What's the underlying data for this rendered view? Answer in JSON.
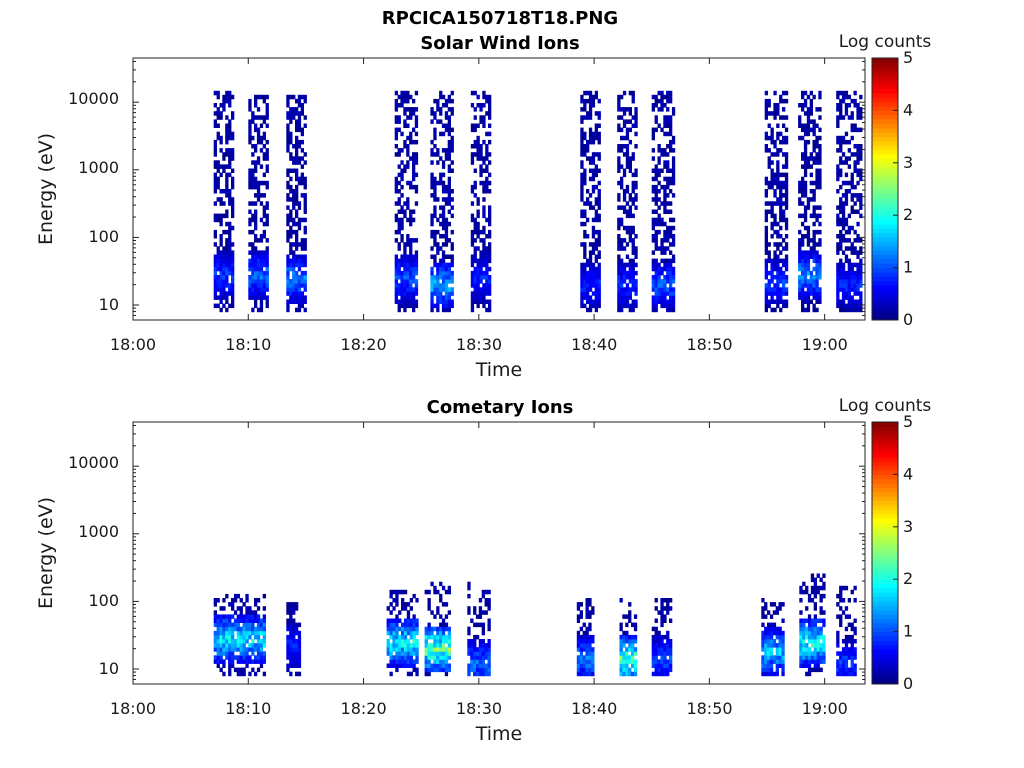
{
  "figure_title": "RPCICA150718T18.PNG",
  "colorbar": {
    "label": "Log counts",
    "ticks": [
      "0",
      "1",
      "2",
      "3",
      "4",
      "5"
    ],
    "range": [
      0,
      5
    ],
    "colormap": "jet"
  },
  "chart_data": [
    {
      "type": "heatmap",
      "title": "Solar Wind Ions",
      "xlabel": "Time",
      "ylabel": "Energy (eV)",
      "x_ticks": [
        "18:00",
        "18:10",
        "18:20",
        "18:30",
        "18:40",
        "18:50",
        "19:00"
      ],
      "y_ticks": [
        "10",
        "100",
        "1000",
        "10000"
      ],
      "y_scale": "log",
      "xlim_minutes": [
        0,
        63.5
      ],
      "ylim_ev": [
        6,
        45000
      ],
      "color_range": [
        0,
        5
      ],
      "bursts": [
        {
          "start": 7.0,
          "end": 8.7,
          "low_count_energy_ev": [
            8,
            15000
          ],
          "peak_energy_ev": 28,
          "peak_log_counts": 1.2
        },
        {
          "start": 10.0,
          "end": 11.7,
          "low_count_energy_ev": [
            8,
            15000
          ],
          "peak_energy_ev": 28,
          "peak_log_counts": 1.5
        },
        {
          "start": 13.3,
          "end": 15.0,
          "low_count_energy_ev": [
            8,
            15000
          ],
          "peak_energy_ev": 25,
          "peak_log_counts": 1.6
        },
        {
          "start": 22.7,
          "end": 24.7,
          "low_count_energy_ev": [
            8,
            15000
          ],
          "peak_energy_ev": 25,
          "peak_log_counts": 1.3
        },
        {
          "start": 25.8,
          "end": 27.8,
          "low_count_energy_ev": [
            8,
            15000
          ],
          "peak_energy_ev": 20,
          "peak_log_counts": 1.9
        },
        {
          "start": 29.3,
          "end": 31.0,
          "low_count_energy_ev": [
            8,
            15000
          ],
          "peak_energy_ev": 25,
          "peak_log_counts": 1.0
        },
        {
          "start": 38.8,
          "end": 40.5,
          "low_count_energy_ev": [
            8,
            15000
          ],
          "peak_energy_ev": 20,
          "peak_log_counts": 1.0
        },
        {
          "start": 42.0,
          "end": 43.7,
          "low_count_energy_ev": [
            8,
            15000
          ],
          "peak_energy_ev": 20,
          "peak_log_counts": 1.1
        },
        {
          "start": 45.0,
          "end": 47.0,
          "low_count_energy_ev": [
            8,
            15000
          ],
          "peak_energy_ev": 20,
          "peak_log_counts": 1.4
        },
        {
          "start": 54.8,
          "end": 56.7,
          "low_count_energy_ev": [
            8,
            15000
          ],
          "peak_energy_ev": 22,
          "peak_log_counts": 1.2
        },
        {
          "start": 57.7,
          "end": 59.7,
          "low_count_energy_ev": [
            8,
            15000
          ],
          "peak_energy_ev": 28,
          "peak_log_counts": 1.7
        },
        {
          "start": 61.0,
          "end": 63.2,
          "low_count_energy_ev": [
            8,
            15000
          ],
          "peak_energy_ev": 20,
          "peak_log_counts": 1.0
        }
      ]
    },
    {
      "type": "heatmap",
      "title": "Cometary Ions",
      "xlabel": "Time",
      "ylabel": "Energy (eV)",
      "x_ticks": [
        "18:00",
        "18:10",
        "18:20",
        "18:30",
        "18:40",
        "18:50",
        "19:00"
      ],
      "y_ticks": [
        "10",
        "100",
        "1000",
        "10000"
      ],
      "y_scale": "log",
      "xlim_minutes": [
        0,
        63.5
      ],
      "ylim_ev": [
        6,
        45000
      ],
      "color_range": [
        0,
        5
      ],
      "bursts": [
        {
          "start": 7.0,
          "end": 11.5,
          "low_count_energy_ev": [
            8,
            130
          ],
          "peak_energy_ev": 28,
          "peak_log_counts": 2.3
        },
        {
          "start": 13.3,
          "end": 14.5,
          "low_count_energy_ev": [
            8,
            120
          ],
          "peak_energy_ev": 22,
          "peak_log_counts": 1.0
        },
        {
          "start": 22.0,
          "end": 24.7,
          "low_count_energy_ev": [
            8,
            140
          ],
          "peak_energy_ev": 25,
          "peak_log_counts": 2.4
        },
        {
          "start": 25.3,
          "end": 27.5,
          "low_count_energy_ev": [
            8,
            200
          ],
          "peak_energy_ev": 20,
          "peak_log_counts": 3.0
        },
        {
          "start": 29.0,
          "end": 31.0,
          "low_count_energy_ev": [
            8,
            200
          ],
          "peak_energy_ev": 12,
          "peak_log_counts": 1.5
        },
        {
          "start": 38.5,
          "end": 40.0,
          "low_count_energy_ev": [
            8,
            120
          ],
          "peak_energy_ev": 14,
          "peak_log_counts": 1.6
        },
        {
          "start": 42.2,
          "end": 43.5,
          "low_count_energy_ev": [
            8,
            120
          ],
          "peak_energy_ev": 14,
          "peak_log_counts": 2.9
        },
        {
          "start": 45.0,
          "end": 46.7,
          "low_count_energy_ev": [
            8,
            120
          ],
          "peak_energy_ev": 14,
          "peak_log_counts": 1.3
        },
        {
          "start": 54.5,
          "end": 56.5,
          "low_count_energy_ev": [
            8,
            120
          ],
          "peak_energy_ev": 18,
          "peak_log_counts": 2.0
        },
        {
          "start": 57.8,
          "end": 60.0,
          "low_count_energy_ev": [
            8,
            250
          ],
          "peak_energy_ev": 25,
          "peak_log_counts": 2.6
        },
        {
          "start": 61.0,
          "end": 62.7,
          "low_count_energy_ev": [
            8,
            180
          ],
          "peak_energy_ev": 12,
          "peak_log_counts": 1.2
        }
      ]
    }
  ]
}
